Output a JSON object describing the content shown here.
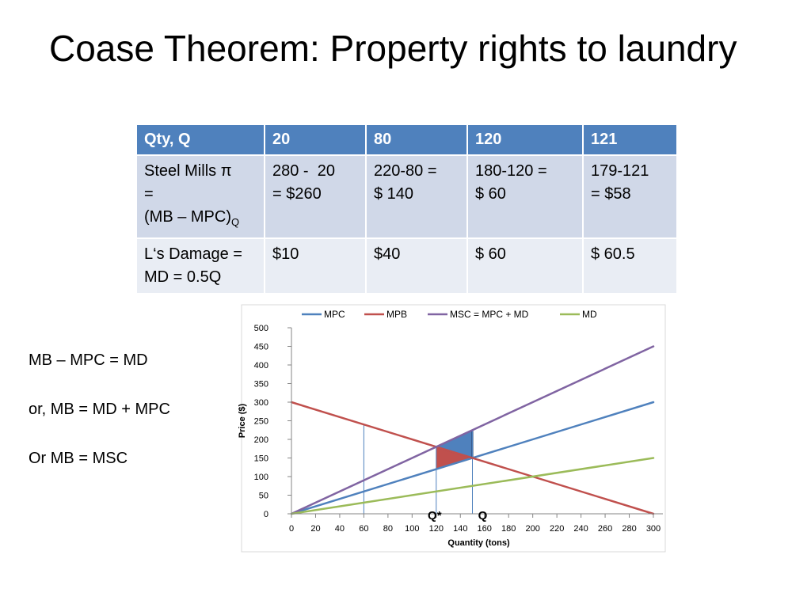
{
  "slide": {
    "title": "Coase Theorem: Property rights to laundry"
  },
  "table": {
    "header": [
      "Qty, Q",
      "20",
      "80",
      "120",
      "121"
    ],
    "row1": {
      "label_line1": "Steel Mills π",
      "label_line2": "=",
      "label_line3": "(MB – MPC)",
      "label_sub": "Q",
      "cells": [
        {
          "line1": "280 -  20",
          "line2": "= $260"
        },
        {
          "line1": "220-80 =",
          "line2": "$ 140"
        },
        {
          "line1": "180-120 =",
          "line2": "$ 60"
        },
        {
          "line1": "179-121",
          "line2": "= $58"
        }
      ]
    },
    "row2": {
      "label_line1": "L‘s Damage =",
      "label_line2": "MD = 0.5Q",
      "cells": [
        "$10",
        "$40",
        "$ 60",
        "$ 60.5"
      ]
    }
  },
  "side_text": [
    "MB – MPC = MD",
    "or, MB = MD + MPC",
    "Or MB = MSC"
  ],
  "chart_data": {
    "type": "line",
    "xlabel": "Quantity (tons)",
    "ylabel": "Price ($)",
    "xlim": [
      0,
      300
    ],
    "ylim": [
      0,
      500
    ],
    "xticks": [
      0,
      20,
      40,
      60,
      80,
      100,
      120,
      140,
      160,
      180,
      200,
      220,
      240,
      260,
      280,
      300
    ],
    "yticks": [
      0,
      50,
      100,
      150,
      200,
      250,
      300,
      350,
      400,
      450,
      500
    ],
    "grid": false,
    "legend_position": "top",
    "series": [
      {
        "name": "MPC",
        "color": "#4f81bd",
        "x": [
          0,
          300
        ],
        "y": [
          0,
          300
        ]
      },
      {
        "name": "MPB",
        "color": "#c0504d",
        "x": [
          0,
          300
        ],
        "y": [
          300,
          0
        ]
      },
      {
        "name": "MSC = MPC + MD",
        "color": "#8064a2",
        "x": [
          0,
          300
        ],
        "y": [
          0,
          450
        ]
      },
      {
        "name": "MD",
        "color": "#9bbb59",
        "x": [
          0,
          300
        ],
        "y": [
          0,
          150
        ]
      }
    ],
    "vertical_lines": [
      {
        "x": 60,
        "y_top": 240
      },
      {
        "x": 120,
        "y_top": 180
      },
      {
        "x": 150,
        "y_top": 225
      }
    ],
    "shaded_regions": [
      {
        "color": "#c0504d",
        "points": [
          [
            120,
            180
          ],
          [
            120,
            120
          ],
          [
            150,
            150
          ]
        ]
      },
      {
        "color": "#4f81bd",
        "points": [
          [
            120,
            180
          ],
          [
            150,
            225
          ],
          [
            150,
            150
          ]
        ]
      }
    ],
    "annotations": [
      {
        "text": "Q*",
        "x": 120
      },
      {
        "text": "Q",
        "x": 150
      }
    ]
  }
}
